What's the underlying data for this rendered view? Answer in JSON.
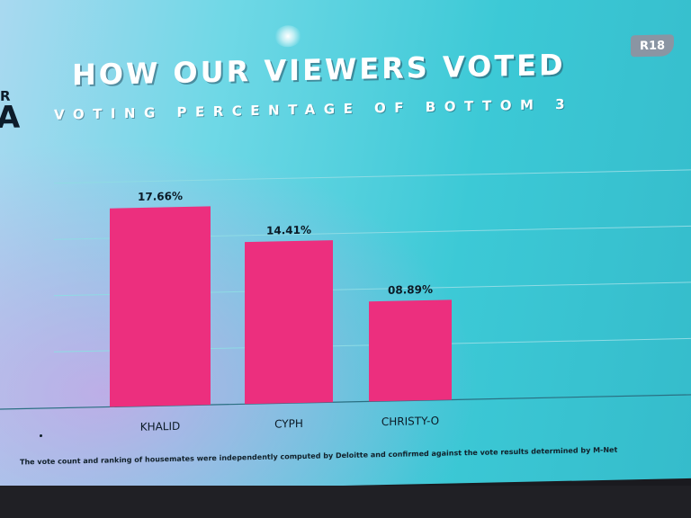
{
  "header": {
    "rating": "R18"
  },
  "left_fragment": {
    "line1": "R",
    "line2": "A"
  },
  "chart_data": {
    "type": "bar",
    "title": "HOW OUR VIEWERS VOTED",
    "subtitle": "VOTING PERCENTAGE OF BOTTOM 3",
    "categories": [
      "KHALID",
      "CYPH",
      "CHRISTY-O"
    ],
    "values": [
      17.66,
      14.41,
      8.89
    ],
    "value_labels": [
      "17.66%",
      "14.41%",
      "08.89%"
    ],
    "xlabel": "",
    "ylabel": "",
    "ylim": [
      0,
      20
    ],
    "grid": true,
    "colors": {
      "bar": "#ec2f7e",
      "grid": "#8fdbe4",
      "baseline": "#2a6f82",
      "text": "#0b1a26"
    }
  },
  "footnote": "The vote count and ranking of housemates were independently computed by Deloitte and confirmed against the vote results determined by M-Net"
}
